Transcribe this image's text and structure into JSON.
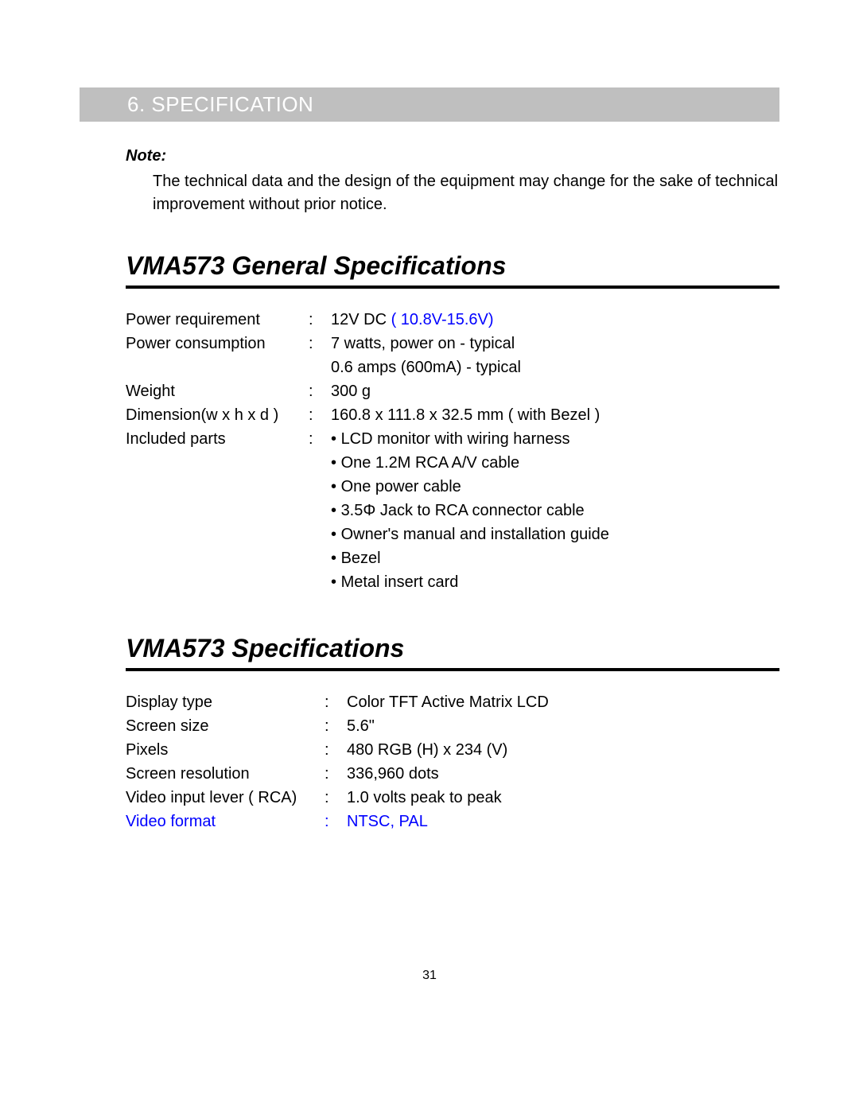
{
  "header": {
    "title": "6. SPECIFICATION"
  },
  "note": {
    "label": "Note:",
    "text": "The technical data and the design of the equipment may change for the sake of technical improvement without prior notice."
  },
  "general": {
    "title": "VMA573 General Specifications",
    "rows": {
      "power_requirement": {
        "label": "Power requirement",
        "value_prefix": "12V DC ",
        "value_blue": "( 10.8V-15.6V)"
      },
      "power_consumption": {
        "label": "Power consumption",
        "line1": "7 watts, power on - typical",
        "line2": "0.6 amps (600mA) - typical"
      },
      "weight": {
        "label": "Weight",
        "value": "300 g"
      },
      "dimension": {
        "label": "Dimension(w x h x d )",
        "value": "160.8 x 111.8 x 32.5 mm ( with Bezel )"
      },
      "included": {
        "label": "Included parts",
        "b1": "LCD monitor with wiring harness",
        "b2": "One 1.2M RCA A/V cable",
        "b3": "One power cable",
        "b4": "3.5Φ Jack to RCA connector cable",
        "b5": "Owner's manual and installation guide",
        "b6": "Bezel",
        "b7": "Metal insert card"
      }
    }
  },
  "specs": {
    "title": "VMA573 Specifications",
    "rows": {
      "display_type": {
        "label": "Display type",
        "value": "Color TFT Active Matrix LCD"
      },
      "screen_size": {
        "label": "Screen size",
        "value": "5.6\""
      },
      "pixels": {
        "label": "Pixels",
        "value": "480 RGB (H) x 234 (V)"
      },
      "resolution": {
        "label": "Screen resolution",
        "value": "336,960 dots"
      },
      "video_input": {
        "label": "Video input lever ( RCA)",
        "value": "1.0 volts peak to peak"
      },
      "video_format": {
        "label": "Video format",
        "value": "NTSC, PAL"
      }
    }
  },
  "page_number": "31",
  "colors": {
    "header_bg": "#bfbfbf",
    "header_text": "#ffffff",
    "link_blue": "#0000ff",
    "rule": "#000000"
  }
}
